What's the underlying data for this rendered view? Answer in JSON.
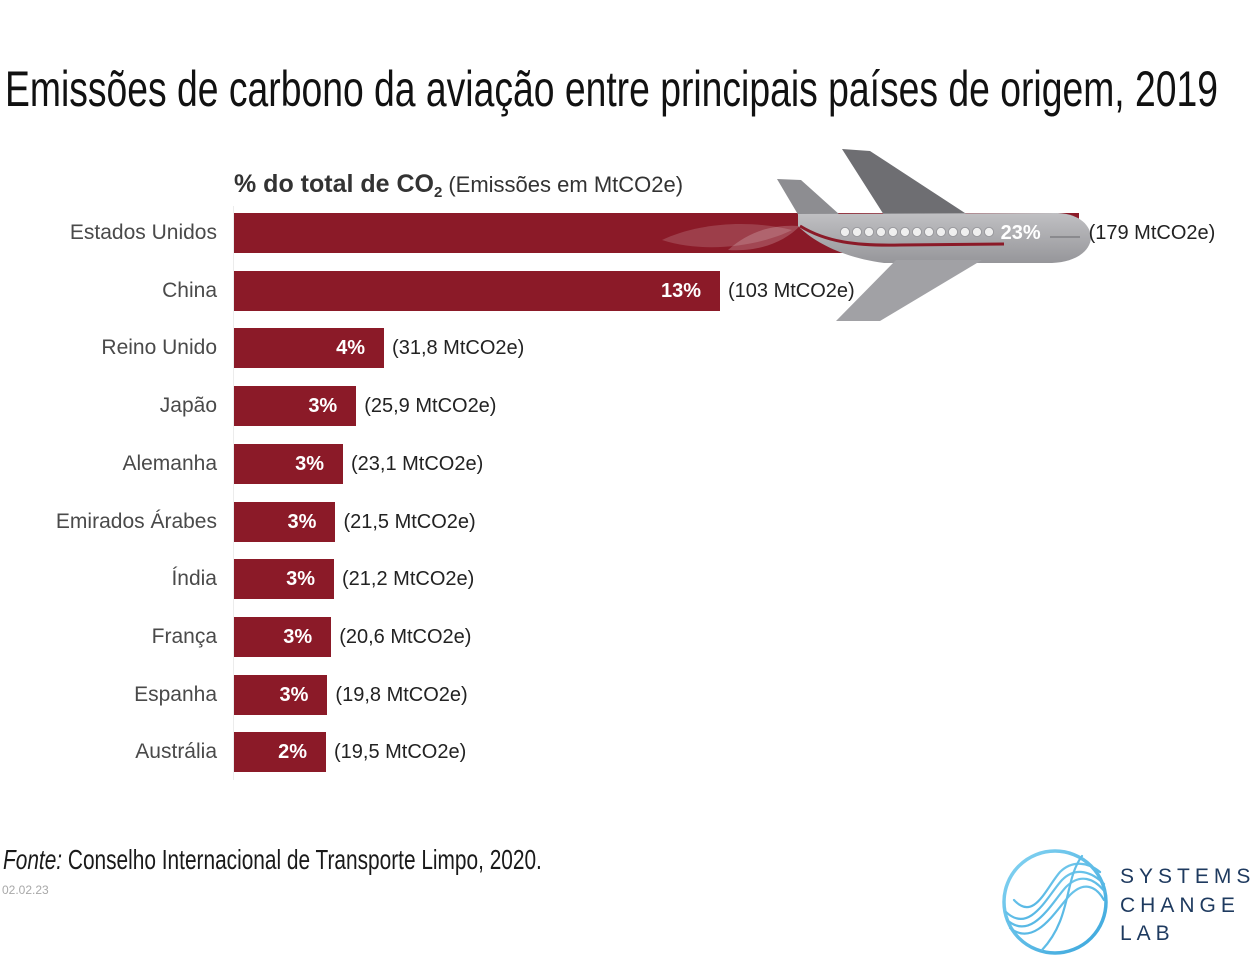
{
  "chart_data": {
    "type": "bar",
    "horizontal": true,
    "title": "Emissões de carbono da aviação entre principais países de origem, 2019",
    "subtitle": {
      "bold": "% do total de CO",
      "subscript": "2",
      "rest": "(Emissões em MtCO2e)"
    },
    "categories": [
      "Estados Unidos",
      "China",
      "Reino Unido",
      "Japão",
      "Alemanha",
      "Emirados Árabes",
      "Índia",
      "França",
      "Espanha",
      "Austrália"
    ],
    "values": [
      179,
      103,
      31.8,
      25.9,
      23.1,
      21.5,
      21.2,
      20.6,
      19.8,
      19.5
    ],
    "percent_labels": [
      "23%",
      "13%",
      "4%",
      "3%",
      "3%",
      "3%",
      "3%",
      "3%",
      "3%",
      "2%"
    ],
    "value_labels": [
      "(179 MtCO2e)",
      "(103 MtCO2e)",
      "(31,8 MtCO2e)",
      "(25,9 MtCO2e)",
      "(23,1 MtCO2e)",
      "(21,5 MtCO2e)",
      "(21,2 MtCO2e)",
      "(20,6 MtCO2e)",
      "(19,8 MtCO2e)",
      "(19,5 MtCO2e)"
    ],
    "bar_color": "#8b1a28",
    "grid": false,
    "legend": false
  },
  "plane": {
    "icon": "airplane-icon"
  },
  "source": {
    "label": "Fonte:",
    "text": "Conselho Internacional de Transporte Limpo, 2020."
  },
  "date": "02.02.23",
  "logo": {
    "icon": "wave-circle-icon",
    "lines": [
      "SYSTEMS",
      "CHANGE",
      "LAB"
    ],
    "text_color": "#1e3a5f",
    "ring_colors": [
      "#86d4f2",
      "#3aa6dc"
    ]
  }
}
